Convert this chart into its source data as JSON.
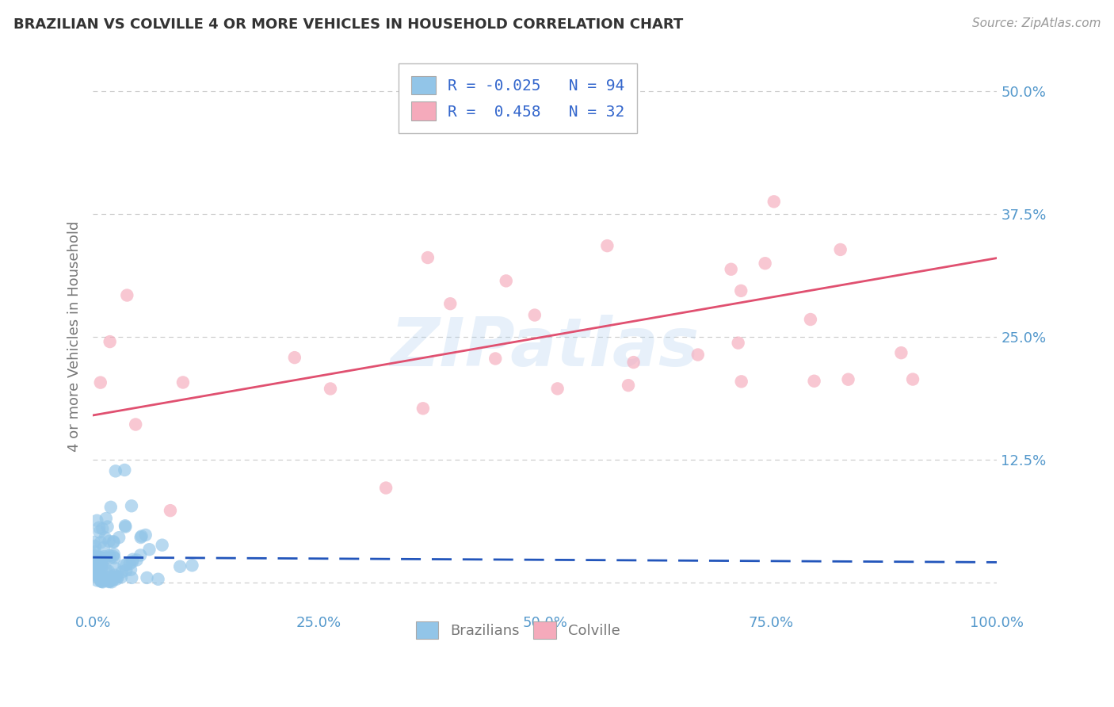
{
  "title": "BRAZILIAN VS COLVILLE 4 OR MORE VEHICLES IN HOUSEHOLD CORRELATION CHART",
  "source": "Source: ZipAtlas.com",
  "ylabel": "4 or more Vehicles in Household",
  "xlim": [
    0.0,
    1.0
  ],
  "ylim": [
    -0.03,
    0.53
  ],
  "xticks": [
    0.0,
    0.25,
    0.5,
    0.75,
    1.0
  ],
  "xtick_labels": [
    "0.0%",
    "25.0%",
    "50.0%",
    "75.0%",
    "100.0%"
  ],
  "yticks": [
    0.0,
    0.125,
    0.25,
    0.375,
    0.5
  ],
  "ytick_labels": [
    "",
    "12.5%",
    "25.0%",
    "37.5%",
    "50.0%"
  ],
  "legend_labels": [
    "Brazilians",
    "Colville"
  ],
  "R_brazilian": -0.025,
  "N_brazilian": 94,
  "R_colville": 0.458,
  "N_colville": 32,
  "blue_scatter_color": "#92C5E8",
  "pink_scatter_color": "#F5AABB",
  "blue_line_color": "#2255BB",
  "pink_line_color": "#E05070",
  "watermark_text": "ZIPatlas",
  "background_color": "#FFFFFF",
  "grid_color": "#CCCCCC",
  "title_color": "#333333",
  "axis_label_color": "#777777",
  "tick_label_color": "#5599CC",
  "legend_R_color": "#3366CC"
}
